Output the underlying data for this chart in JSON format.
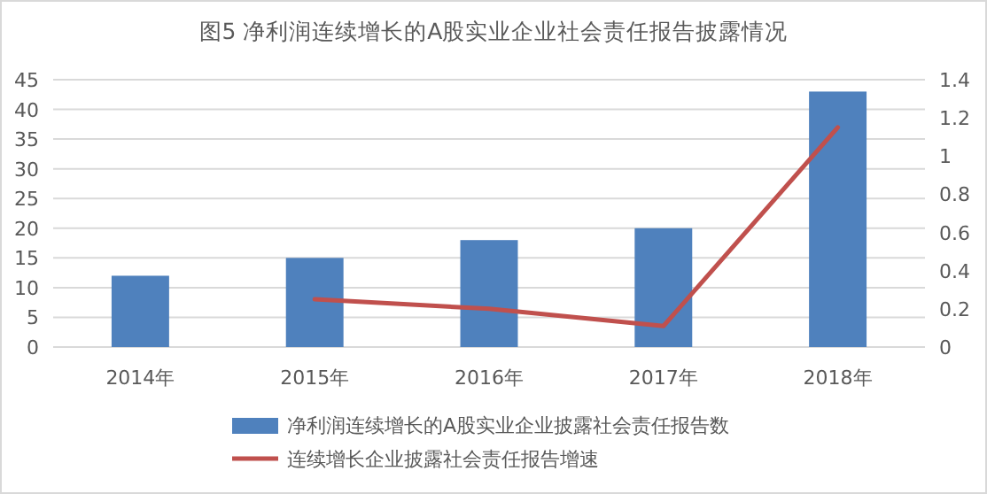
{
  "chart_data": {
    "type": "bar",
    "title": "图5  净利润连续增长的A股实业企业社会责任报告披露情况",
    "categories": [
      "2014年",
      "2015年",
      "2016年",
      "2017年",
      "2018年"
    ],
    "series": [
      {
        "name": "净利润连续增长的A股实业企业披露社会责任报告数",
        "color": "#4f81bd",
        "values": [
          12,
          15,
          18,
          20,
          43
        ]
      },
      {
        "name": "连续增长企业披露社会责任报告增速",
        "color": "#c0504d",
        "type": "line",
        "axis": "y2",
        "values": [
          null,
          0.25,
          0.2,
          0.11,
          1.15
        ]
      }
    ],
    "ylim": [
      0,
      45
    ],
    "yticks": [
      0,
      5,
      10,
      15,
      20,
      25,
      30,
      35,
      40,
      45
    ],
    "y2lim": [
      0,
      1.4
    ],
    "y2ticks": [
      0,
      0.2,
      0.4,
      0.6,
      0.8,
      1,
      1.2,
      1.4
    ],
    "grid": "y",
    "legend": "bottom"
  }
}
